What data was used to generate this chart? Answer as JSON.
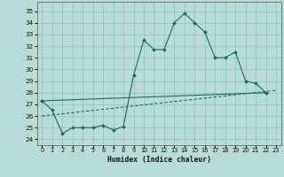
{
  "xlabel": "Humidex (Indice chaleur)",
  "xlim": [
    -0.5,
    23.5
  ],
  "ylim": [
    23.5,
    35.8
  ],
  "yticks": [
    24,
    25,
    26,
    27,
    28,
    29,
    30,
    31,
    32,
    33,
    34,
    35
  ],
  "xticks": [
    0,
    1,
    2,
    3,
    4,
    5,
    6,
    7,
    8,
    9,
    10,
    11,
    12,
    13,
    14,
    15,
    16,
    17,
    18,
    19,
    20,
    21,
    22,
    23
  ],
  "bg_color": "#b8ddd6",
  "grid_color": "#8cc4ba",
  "line_color": "#1a6b5a",
  "line1_x": [
    0,
    1,
    2,
    3,
    4,
    5,
    6,
    7,
    8,
    9,
    10,
    11,
    12,
    13,
    14,
    15,
    16,
    17,
    18,
    19,
    20,
    21,
    22
  ],
  "line1_y": [
    27.3,
    26.5,
    24.5,
    25.0,
    25.0,
    25.0,
    25.2,
    24.8,
    25.1,
    29.5,
    32.5,
    31.7,
    31.7,
    34.0,
    34.8,
    34.0,
    33.2,
    31.0,
    31.0,
    31.5,
    29.0,
    28.8,
    28.0
  ],
  "line2_x": [
    0,
    22
  ],
  "line2_y": [
    27.3,
    28.0
  ],
  "line3_x": [
    0,
    23
  ],
  "line3_y": [
    26.0,
    28.2
  ]
}
